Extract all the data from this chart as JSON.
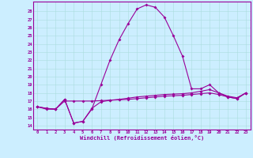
{
  "xlabel": "Windchill (Refroidissement éolien,°C)",
  "background_color": "#cceeff",
  "line_color": "#990099",
  "grid_color": "#aadddd",
  "xlim": [
    -0.5,
    23.5
  ],
  "ylim": [
    13.5,
    29.2
  ],
  "xticks": [
    0,
    1,
    2,
    3,
    4,
    5,
    6,
    7,
    8,
    9,
    10,
    11,
    12,
    13,
    14,
    15,
    16,
    17,
    18,
    19,
    20,
    21,
    22,
    23
  ],
  "yticks": [
    14,
    15,
    16,
    17,
    18,
    19,
    20,
    21,
    22,
    23,
    24,
    25,
    26,
    27,
    28
  ],
  "line1": [
    16.3,
    16.0,
    16.0,
    17.2,
    14.3,
    14.5,
    16.0,
    19.0,
    22.0,
    24.5,
    26.5,
    28.3,
    28.8,
    28.5,
    27.3,
    25.0,
    22.5,
    18.5,
    18.5,
    19.0,
    18.0,
    17.5,
    17.3,
    18.0
  ],
  "line2": [
    16.3,
    16.1,
    16.0,
    17.2,
    14.3,
    14.5,
    16.1,
    16.9,
    17.1,
    17.2,
    17.35,
    17.5,
    17.6,
    17.7,
    17.8,
    17.85,
    17.9,
    18.0,
    18.2,
    18.4,
    18.0,
    17.6,
    17.4,
    18.0
  ],
  "line3": [
    16.3,
    16.1,
    16.0,
    17.0,
    17.0,
    17.0,
    17.0,
    17.05,
    17.1,
    17.15,
    17.2,
    17.3,
    17.4,
    17.5,
    17.6,
    17.65,
    17.7,
    17.8,
    17.9,
    18.0,
    17.8,
    17.5,
    17.3,
    18.0
  ]
}
